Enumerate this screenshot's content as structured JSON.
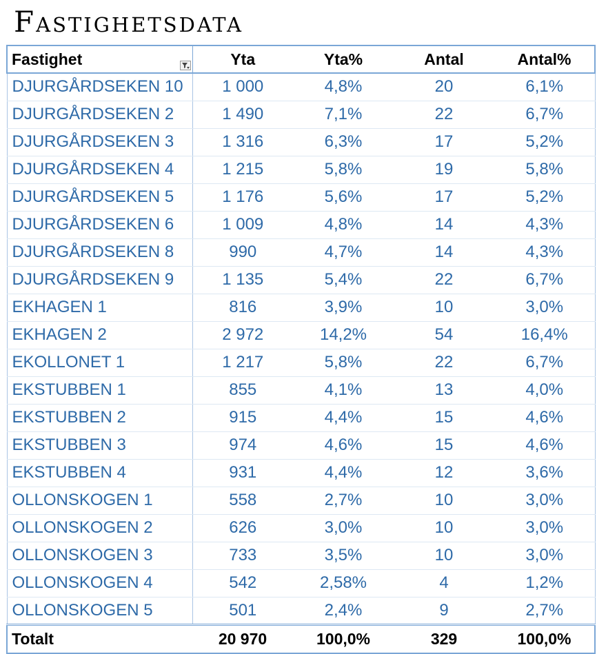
{
  "title": "Fastighetsdata",
  "colors": {
    "header_text": "#000000",
    "row_text": "#2e6aa8",
    "border": "#7aa6d6"
  },
  "table": {
    "headers": [
      "Fastighet",
      "Yta",
      "Yta%",
      "Antal",
      "Antal%"
    ],
    "filter_icon": "filter-dropdown-icon",
    "rows": [
      [
        "DJURGÅRDSEKEN 10",
        "1 000",
        "4,8%",
        "20",
        "6,1%"
      ],
      [
        "DJURGÅRDSEKEN 2",
        "1 490",
        "7,1%",
        "22",
        "6,7%"
      ],
      [
        "DJURGÅRDSEKEN 3",
        "1 316",
        "6,3%",
        "17",
        "5,2%"
      ],
      [
        "DJURGÅRDSEKEN 4",
        "1 215",
        "5,8%",
        "19",
        "5,8%"
      ],
      [
        "DJURGÅRDSEKEN 5",
        "1 176",
        "5,6%",
        "17",
        "5,2%"
      ],
      [
        "DJURGÅRDSEKEN 6",
        "1 009",
        "4,8%",
        "14",
        "4,3%"
      ],
      [
        "DJURGÅRDSEKEN 8",
        "990",
        "4,7%",
        "14",
        "4,3%"
      ],
      [
        "DJURGÅRDSEKEN 9",
        "1 135",
        "5,4%",
        "22",
        "6,7%"
      ],
      [
        "EKHAGEN 1",
        "816",
        "3,9%",
        "10",
        "3,0%"
      ],
      [
        "EKHAGEN 2",
        "2 972",
        "14,2%",
        "54",
        "16,4%"
      ],
      [
        "EKOLLONET 1",
        "1 217",
        "5,8%",
        "22",
        "6,7%"
      ],
      [
        "EKSTUBBEN 1",
        "855",
        "4,1%",
        "13",
        "4,0%"
      ],
      [
        "EKSTUBBEN 2",
        "915",
        "4,4%",
        "15",
        "4,6%"
      ],
      [
        "EKSTUBBEN 3",
        "974",
        "4,6%",
        "15",
        "4,6%"
      ],
      [
        "EKSTUBBEN 4",
        "931",
        "4,4%",
        "12",
        "3,6%"
      ],
      [
        "OLLONSKOGEN 1",
        "558",
        "2,7%",
        "10",
        "3,0%"
      ],
      [
        "OLLONSKOGEN 2",
        "626",
        "3,0%",
        "10",
        "3,0%"
      ],
      [
        "OLLONSKOGEN 3",
        "733",
        "3,5%",
        "10",
        "3,0%"
      ],
      [
        "OLLONSKOGEN 4",
        "542",
        "2,58%",
        "4",
        "1,2%"
      ],
      [
        "OLLONSKOGEN 5",
        "501",
        "2,4%",
        "9",
        "2,7%"
      ]
    ],
    "totals": [
      "Totalt",
      "20 970",
      "100,0%",
      "329",
      "100,0%"
    ]
  }
}
